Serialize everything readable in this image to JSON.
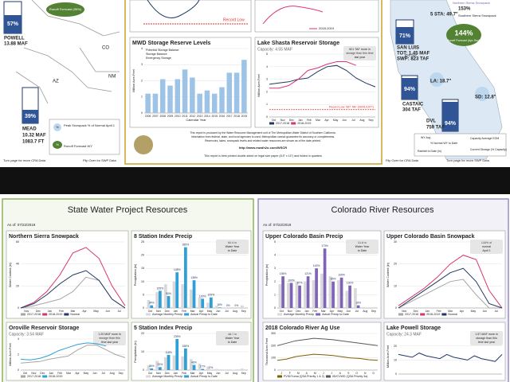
{
  "top": {
    "left": {
      "powell_pct": "57%",
      "powell_name": "POWELL",
      "powell_storage": "13.88 MAF",
      "mead_pct": "39%",
      "mead_name": "MEAD",
      "mead_storage": "10.32 MAF",
      "mead_elevation": "1083.7 FT",
      "runoff": "Runoff Forecast (95%)",
      "states": [
        "CO",
        "NM",
        "AZ"
      ],
      "legend_snowpack": "Peak Snowpack % of Normal April 1",
      "legend_runoff": "Runoff Forecast WY",
      "pct_sign": "%",
      "footer_left": "Turn page for more CRA Data",
      "footer_right": "Flip Over for SWP Data"
    },
    "record_low_top": "Record Low",
    "legend_top": "2018-2019",
    "charts": [
      {
        "type": "bar",
        "title": "MWD Storage Reserve Levels",
        "y_label": "Million Acre-Feet",
        "x_label": "Calendar Year",
        "legend_items": [
          "Potential Storage Balance",
          "Storage Balance",
          "Emergency Storage"
        ],
        "categories": [
          "2006",
          "2007",
          "2008",
          "2009",
          "2010",
          "2011",
          "2012",
          "2013",
          "2014",
          "2015",
          "2016",
          "2017",
          "2018",
          "2019"
        ],
        "ylim": [
          0,
          4
        ],
        "yticks": [
          0,
          1,
          2,
          3,
          4
        ],
        "series": [
          {
            "name": null,
            "color": "#9dc3e6",
            "values": [
              1.2,
              1.2,
              2.1,
              1.7,
              2.1,
              2.7,
              2.2,
              1.2,
              1.4,
              1.2,
              1.6,
              2.5,
              2.5,
              3.3
            ]
          }
        ]
      },
      {
        "type": "line",
        "title": "Lake Shasta Reservoir Storage",
        "subtitle": "Capacity: 4.55 MAF",
        "annotation": [
          "821 TAF more in",
          "storage than this time",
          "last year"
        ],
        "y_label": "Million Acre-Feet",
        "categories": [
          "Oct",
          "Nov",
          "Dec",
          "Jan",
          "Feb",
          "Mar",
          "Apr",
          "May",
          "Jun",
          "Jul",
          "Aug",
          "Sep"
        ],
        "ylim": [
          0,
          5
        ],
        "yticks": [
          0,
          1,
          2,
          3,
          4,
          5
        ],
        "record_low": 0.587,
        "record_low_label": "Record Low: 587 TAF (09/01/1977)",
        "series": [
          {
            "name": "2017-2018",
            "color": "#1f3864",
            "values": [
              2.6,
              2.7,
              2.8,
              3.0,
              3.1,
              3.6,
              4.0,
              4.1,
              3.7,
              3.1,
              2.7,
              2.4
            ]
          },
          {
            "name": "2018-2019",
            "color": "#e0307a",
            "values": [
              2.3,
              2.3,
              2.5,
              3.0,
              3.7,
              3.9,
              4.2,
              4.4,
              4.4,
              4.1,
              null,
              null
            ]
          }
        ]
      }
    ],
    "footer": {
      "lines": [
        "This report is produced by the Water Resource Management unit of The Metropolitan Water District of Southern California.",
        "Information from federal, state, and local agencies is used; Metropolitan cannot guarantee its accuracy or completeness.",
        "Reservoirs, lakes, snowpack levels and related water resources are shown as of the date printed."
      ],
      "url": "http://www.mwdh2o.com/WSCR",
      "print_note": "This report is best printed double-sided on legal size paper (8.5\" x 14\") and folded in quarters"
    },
    "right": {
      "five_sta": "5 STA: 49.7\"",
      "n_sierra": "Northern Sierra Snowpack",
      "n_sierra_pct": "153%",
      "s_sierra": "Southern Sierra Snowpack",
      "runoff_pct": "144%",
      "runoff": "Runoff Forecast (Apr-Sept)",
      "san_luis_pct": "71%",
      "san_luis": "SAN LUIS",
      "san_luis_tot": "TOT: 1.45 MAF",
      "san_luis_swp": "SWP: 823 TAF",
      "cap": "825 TAF",
      "la": "LA: 18.7\"",
      "sd": "SD: 12.8\"",
      "castaic_pct": "94%",
      "castaic": "CASTAIC",
      "castaic_storage": "304 TAF",
      "dvl_pct": "94%",
      "dvl": "DVL",
      "dvl_storage": "759 TAF",
      "leg_avg": "WY Avg",
      "leg_normal": "% Normal WY to Date",
      "leg_rain": "Rainfall to Date (in)",
      "leg_cap": "Capacity Average EOM",
      "leg_store": "Current Storage (% Capacity)",
      "footer_left": "Flip Over for CRA Data",
      "footer_right": "Turn page for more SWP Data"
    }
  },
  "swp": {
    "title": "State Water Project Resources",
    "as_of": "As of: 07/22/2019",
    "charts": [
      {
        "type": "line",
        "title": "Northern Sierra Snowpack",
        "y_label": "Water Content (in)",
        "categories": [
          "Nov",
          "Dec",
          "Jan",
          "Feb",
          "Mar",
          "Apr",
          "May",
          "Jun",
          "Jul"
        ],
        "ylim": [
          0,
          60
        ],
        "yticks": [
          0,
          20,
          40,
          60
        ],
        "series": [
          {
            "name": "2017-2018",
            "color": "#a6a6a6",
            "values": [
              0,
              2,
              5,
              8,
              15,
              28,
              25,
              8,
              0
            ]
          },
          {
            "name": "2018-2019",
            "color": "#d6336c",
            "values": [
              0,
              5,
              15,
              30,
              50,
              55,
              45,
              20,
              2
            ]
          },
          {
            "name": "Normal",
            "color": "#1f3864",
            "values": [
              0,
              4,
              12,
              22,
              30,
              34,
              25,
              8,
              0
            ]
          }
        ]
      },
      {
        "type": "bar",
        "title": "8 Station Index Precip",
        "annotation": [
          "60.4 in",
          "Water Year",
          "to Date"
        ],
        "y_label": "Precipitation (in)",
        "categories": [
          "Oct",
          "Nov",
          "Dec",
          "Jan",
          "Feb",
          "Mar",
          "Apr",
          "May",
          "Jun",
          "Jul",
          "Aug",
          "Sep"
        ],
        "ylim": [
          0,
          25
        ],
        "yticks": [
          0,
          5,
          10,
          15,
          20,
          25
        ],
        "series": [
          {
            "name": "Average Monthly Precip",
            "color": "#d9d9d9",
            "values": [
              3,
              6,
              9,
              10,
              9,
              7,
              4,
              2,
              0.8,
              0.2,
              0.3,
              1
            ]
          },
          {
            "name": "Actual Precip to Date",
            "color": "#2e9fd8",
            "values": [
              1,
              6.5,
              4.5,
              13.5,
              23,
              10.5,
              3.5,
              4,
              0.2,
              0,
              0,
              null
            ],
            "percent_labels": [
              "34%",
              "105%",
              "50%",
              "148%",
              "285%",
              "138%",
              "100%",
              "109%",
              "16%",
              "0%",
              "0%",
              null
            ]
          }
        ]
      },
      {
        "type": "line",
        "title": "Oroville Reservoir Storage",
        "subtitle": "Capacity: 3.54 MAF",
        "annotation": [
          "1.20 MAF more in",
          "storage than this",
          "time last year"
        ],
        "y_label": "Million Acre-Feet",
        "categories": [
          "Oct",
          "Nov",
          "Dec",
          "Jan",
          "Feb",
          "Mar",
          "Apr",
          "May",
          "Jun",
          "Jul",
          "Aug",
          "Sep"
        ],
        "ylim": [
          0,
          4
        ],
        "yticks": [
          0,
          2,
          4
        ],
        "series": [
          {
            "name": "2017-2018",
            "color": "#a6a6a6",
            "values": [
              0.9,
              1.0,
              1.1,
              1.4,
              1.6,
              1.8,
              2.6,
              3.2,
              3.2,
              2.6,
              2.0,
              1.6
            ]
          },
          {
            "name": "2018-2019",
            "color": "#2e9fd8",
            "values": [
              1.4,
              1.3,
              1.5,
              1.9,
              2.5,
              2.9,
              3.3,
              3.5,
              3.4,
              3.1,
              null,
              null
            ]
          }
        ]
      },
      {
        "type": "bar",
        "title": "5 Station Index Precip",
        "annotation": [
          "48.7 in",
          "Water Year",
          "to Date"
        ],
        "y_label": "Precipitation (in)",
        "categories": [
          "Oct",
          "Nov",
          "Dec",
          "Jan",
          "Feb",
          "Mar",
          "Apr",
          "May",
          "Jun",
          "Jul",
          "Aug",
          "Sep"
        ],
        "ylim": [
          0,
          20
        ],
        "yticks": [
          0,
          10,
          20
        ],
        "series": [
          {
            "name": "Average Monthly Precip",
            "color": "#d9d9d9",
            "values": [
              2.5,
              5,
              7,
              8,
              7.5,
              6,
              3.5,
              2,
              0.6,
              0.1,
              0.2,
              0.8
            ]
          },
          {
            "name": "Actual Precip to Date",
            "color": "#2e9fd8",
            "values": [
              0.9,
              1.6,
              8.3,
              17,
              11.8,
              2.8,
              0.6,
              0,
              null,
              null,
              null,
              null
            ],
            "percent_labels": [
              "36%",
              "33%",
              "118%",
              "239%",
              "158%",
              "46%",
              "17%",
              "0%",
              null,
              null,
              null,
              null
            ]
          }
        ]
      }
    ]
  },
  "cra": {
    "title": "Colorado River Resources",
    "as_of": "As of: 07/22/2019",
    "charts": [
      {
        "type": "bar",
        "title": "Upper Colorado Basin Precip",
        "annotation": [
          "31.8 in",
          "Water Year",
          "to Date"
        ],
        "y_label": "Precipitation (in)",
        "categories": [
          "Oct",
          "Nov",
          "Dec",
          "Jan",
          "Feb",
          "Mar",
          "Apr",
          "May",
          "Jun",
          "Jul",
          "Aug",
          "Sep"
        ],
        "ylim": [
          0,
          5
        ],
        "yticks": [
          0,
          1,
          2,
          3,
          4,
          5
        ],
        "series": [
          {
            "name": "Average Monthly Precip",
            "color": "#d9d9d9",
            "values": [
              1.8,
              1.9,
              2.0,
              2.0,
              2.1,
              2.6,
              2.4,
              2.1,
              1.3,
              1.5,
              null,
              null
            ]
          },
          {
            "name": "Actual Precip to Date",
            "color": "#7f63b8",
            "values": [
              2.4,
              1.9,
              1.7,
              2.4,
              3.0,
              4.5,
              2.0,
              2.3,
              1.7,
              0.2,
              null,
              null
            ],
            "percent_labels": [
              "136%",
              "100%",
              "87%",
              "121%",
              "143%",
              "173%",
              "85%",
              "109%",
              "130%",
              "16%",
              null,
              null
            ]
          }
        ]
      },
      {
        "type": "line",
        "title": "Upper Colorado Basin Snowpack",
        "annotation": [
          "135% of",
          "normal",
          "April 1"
        ],
        "y_label": "Water Content (in)",
        "categories": [
          "Nov",
          "Dec",
          "Jan",
          "Feb",
          "Mar",
          "Apr",
          "May",
          "Jun",
          "Jul"
        ],
        "ylim": [
          0,
          30
        ],
        "yticks": [
          0,
          10,
          20,
          30
        ],
        "series": [
          {
            "name": "2017-2018",
            "color": "#a6a6a6",
            "values": [
              0,
              3,
              6,
              9,
              12,
              13,
              6,
              0,
              0
            ]
          },
          {
            "name": "2018-2019",
            "color": "#d6336c",
            "values": [
              1,
              5,
              9,
              14,
              20,
              24,
              22,
              8,
              0
            ]
          },
          {
            "name": "Normal",
            "color": "#1f3864",
            "values": [
              0,
              4,
              8,
              12,
              16,
              18,
              12,
              2,
              0
            ]
          }
        ]
      },
      {
        "type": "line",
        "title": "2018 Colorado River Ag Use",
        "y_label": "Thousand Acre-Feet",
        "categories": [
          "J",
          "F",
          "M",
          "A",
          "M",
          "J",
          "J",
          "A",
          "S",
          "O",
          "N",
          "D"
        ],
        "ylim": [
          0,
          300
        ],
        "yticks": [
          0,
          100,
          200,
          300
        ],
        "series": [
          {
            "name": "PVID/Yuma (QSA Priority 1 & 2)",
            "color": "#7f6000",
            "values": [
              80,
              90,
              110,
              120,
              130,
              125,
              120,
              110,
              100,
              95,
              85,
              80
            ]
          },
          {
            "name": "IID/CVWD (QSA Priority 3a)",
            "color": "#595959",
            "values": [
              200,
              220,
              240,
              250,
              260,
              255,
              250,
              240,
              230,
              220,
              210,
              200
            ]
          }
        ]
      },
      {
        "type": "line",
        "title": "Lake Powell Storage",
        "subtitle": "Capacity: 24.3 MAF",
        "annotation": [
          "1.57 MAF more in",
          "storage than this",
          "time last year"
        ],
        "y_label": "Million Acre-Feet",
        "ylim": [
          0,
          25
        ],
        "yticks": [
          0,
          10,
          20
        ],
        "series": [
          {
            "name": null,
            "color": "#1f3864",
            "values": [
              14,
              13,
              12,
              15,
              13,
              12,
              11,
              14,
              12,
              11,
              10,
              13,
              11,
              10,
              9,
              14
            ]
          }
        ]
      }
    ]
  }
}
